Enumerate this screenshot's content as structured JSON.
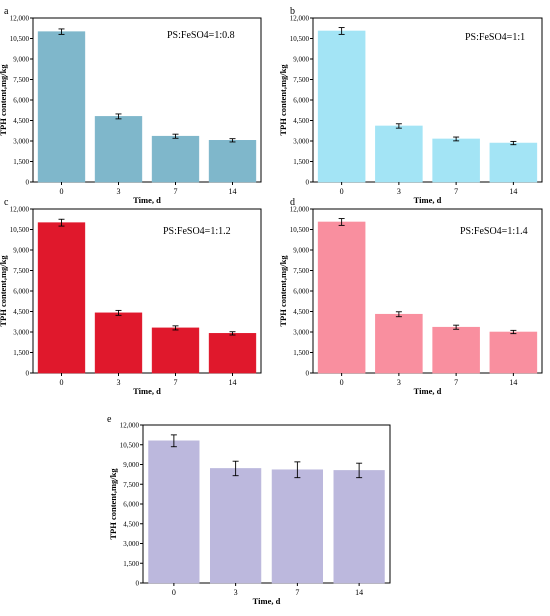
{
  "chart_data": [
    {
      "type": "bar",
      "panel_label": "a",
      "annotation": "PS:FeSO4=1:0.8",
      "xlabel": "Time, d",
      "ylabel": "TPH content,mg/kg",
      "categories": [
        "0",
        "3",
        "7",
        "14"
      ],
      "values": [
        11000,
        4800,
        3350,
        3050
      ],
      "errors": [
        200,
        180,
        150,
        120
      ],
      "ylim": [
        0,
        12000
      ],
      "yticks": [
        "0",
        "1,500",
        "3,000",
        "4,500",
        "6,000",
        "7,500",
        "9,000",
        "10,500",
        "12,000"
      ],
      "color": "#7fb7cb"
    },
    {
      "type": "bar",
      "panel_label": "b",
      "annotation": "PS:FeSO4=1:1",
      "xlabel": "Time, d",
      "ylabel": "TPH content,mg/kg",
      "categories": [
        "0",
        "3",
        "7",
        "14"
      ],
      "values": [
        11050,
        4100,
        3150,
        2850
      ],
      "errors": [
        250,
        160,
        140,
        120
      ],
      "ylim": [
        0,
        12000
      ],
      "yticks": [
        "0",
        "1,500",
        "3,000",
        "4,500",
        "6,000",
        "7,500",
        "9,000",
        "10,500",
        "12,000"
      ],
      "color": "#a3e4f5"
    },
    {
      "type": "bar",
      "panel_label": "c",
      "annotation": "PS:FeSO4=1:1.2",
      "xlabel": "Time, d",
      "ylabel": "TPH content,mg/kg",
      "categories": [
        "0",
        "3",
        "7",
        "14"
      ],
      "values": [
        11000,
        4400,
        3300,
        2900
      ],
      "errors": [
        250,
        180,
        150,
        120
      ],
      "ylim": [
        0,
        12000
      ],
      "yticks": [
        "0",
        "1,500",
        "3,000",
        "4,500",
        "6,000",
        "7,500",
        "9,000",
        "10,500",
        "12,000"
      ],
      "color": "#e0182c"
    },
    {
      "type": "bar",
      "panel_label": "d",
      "annotation": "PS:FeSO4=1:1.4",
      "xlabel": "Time, d",
      "ylabel": "TPH content,mg/kg",
      "categories": [
        "0",
        "3",
        "7",
        "14"
      ],
      "values": [
        11050,
        4300,
        3350,
        3000
      ],
      "errors": [
        250,
        180,
        150,
        120
      ],
      "ylim": [
        0,
        12000
      ],
      "yticks": [
        "0",
        "1,500",
        "3,000",
        "4,500",
        "6,000",
        "7,500",
        "9,000",
        "10,500",
        "12,000"
      ],
      "color": "#f98f9f"
    },
    {
      "type": "bar",
      "panel_label": "e",
      "annotation": "",
      "xlabel": "Time, d",
      "ylabel": "TPH content,mg/kg",
      "categories": [
        "0",
        "3",
        "7",
        "14"
      ],
      "values": [
        10800,
        8700,
        8600,
        8550
      ],
      "errors": [
        450,
        550,
        600,
        550
      ],
      "ylim": [
        0,
        12000
      ],
      "yticks": [
        "0",
        "1,500",
        "3,000",
        "4,500",
        "6,000",
        "7,500",
        "9,000",
        "10,500",
        "12,000"
      ],
      "color": "#bcb8dd"
    }
  ]
}
